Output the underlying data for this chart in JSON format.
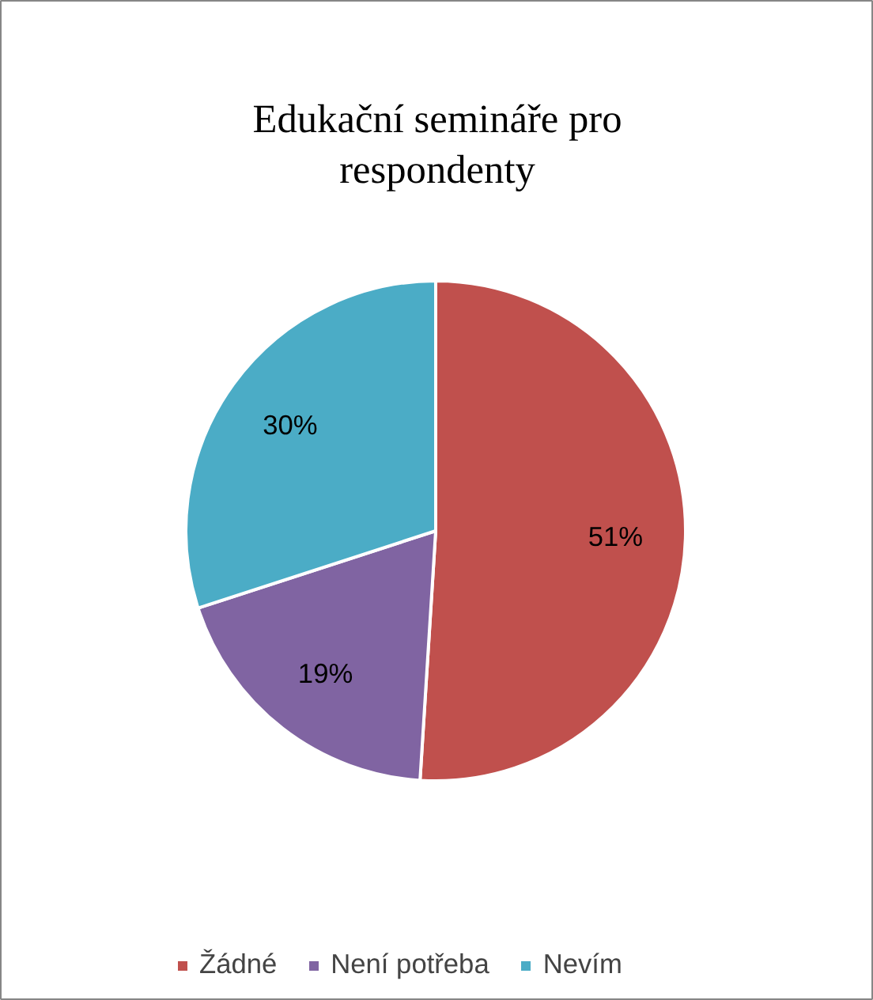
{
  "chart_data": {
    "type": "pie",
    "title": "Edukační semináře pro respondenty",
    "categories": [
      "Žádné",
      "Není potřeba",
      "Nevím"
    ],
    "values": [
      51,
      19,
      30
    ],
    "colors": [
      "#c0504d",
      "#8064a2",
      "#4bacc6"
    ],
    "value_labels": [
      "51%",
      "19%",
      "30%"
    ],
    "legend": "bottom"
  }
}
